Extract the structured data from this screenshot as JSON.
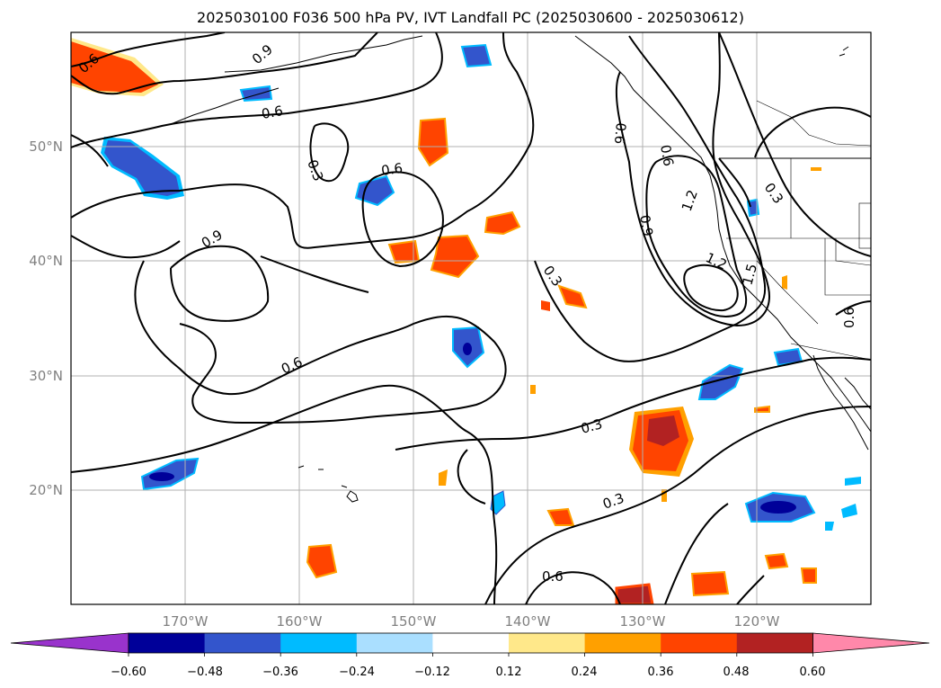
{
  "title": "2025030100 F036 500 hPa PV, IVT Landfall PC (2025030600 - 2025030612)",
  "map": {
    "lat_labels": [
      "50°N",
      "40°N",
      "30°N",
      "20°N"
    ],
    "lon_labels": [
      "170°W",
      "160°W",
      "150°W",
      "140°W",
      "130°W",
      "120°W"
    ],
    "gridlines": true,
    "contour_color": "#000000",
    "coastline_color": "#000000"
  },
  "contour_labels": [
    "0.9",
    "0.6",
    "0.6",
    "0.3",
    "0.6",
    "0.9",
    "0.6",
    "0.3",
    "0.6",
    "0.9",
    "1.2",
    "1.2",
    "1.5",
    "0.3",
    "0.6",
    "0.3",
    "0.3",
    "0.6",
    "0.6"
  ],
  "colorbar": {
    "colors": [
      "#9933cc",
      "#000099",
      "#3355cc",
      "#00bbff",
      "#aadfff",
      "#ffffff",
      "#ffe88a",
      "#ffa000",
      "#ff4400",
      "#b22222",
      "#ff88aa"
    ],
    "tick_labels": [
      "−0.60",
      "−0.48",
      "−0.36",
      "−0.24",
      "−0.12",
      "0.12",
      "0.24",
      "0.36",
      "0.48",
      "0.60"
    ]
  }
}
